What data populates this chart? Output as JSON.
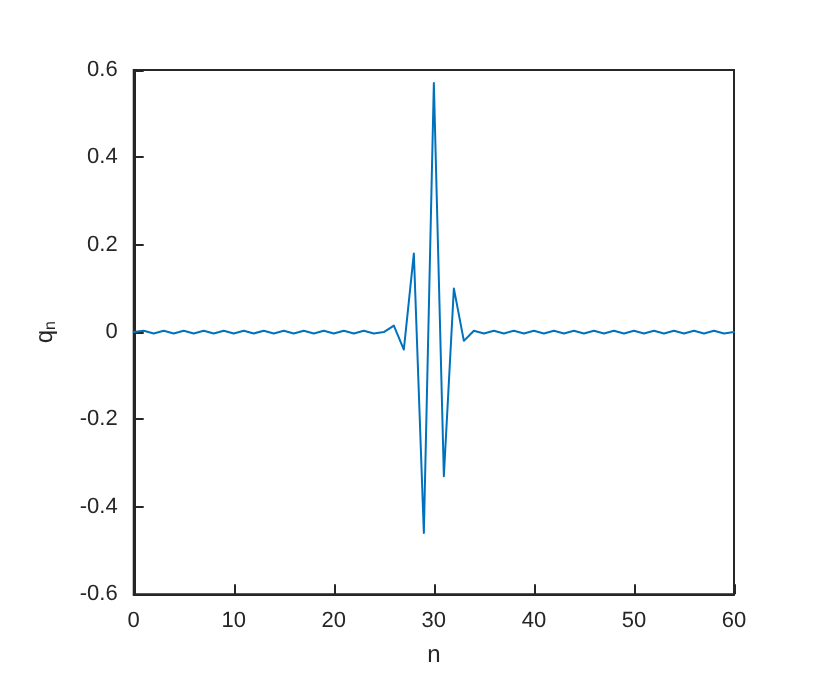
{
  "chart_data": {
    "type": "line",
    "xlabel": "n",
    "ylabel": "q$_{n}$",
    "x": [
      0,
      1,
      2,
      3,
      4,
      5,
      6,
      7,
      8,
      9,
      10,
      11,
      12,
      13,
      14,
      15,
      16,
      17,
      18,
      19,
      20,
      21,
      22,
      23,
      24,
      25,
      26,
      27,
      28,
      29,
      30,
      31,
      32,
      33,
      34,
      35,
      36,
      37,
      38,
      39,
      40,
      41,
      42,
      43,
      44,
      45,
      46,
      47,
      48,
      49,
      50,
      51,
      52,
      53,
      54,
      55,
      56,
      57,
      58,
      59,
      60
    ],
    "series": [
      {
        "color": "#0072bd",
        "values": [
          0,
          0.003,
          -0.003,
          0.003,
          -0.003,
          0.003,
          -0.003,
          0.003,
          -0.003,
          0.003,
          -0.003,
          0.003,
          -0.003,
          0.003,
          -0.003,
          0.003,
          -0.003,
          0.003,
          -0.003,
          0.003,
          -0.003,
          0.003,
          -0.003,
          0.003,
          -0.003,
          0,
          0.015,
          -0.04,
          0.18,
          -0.46,
          0.57,
          -0.33,
          0.1,
          -0.02,
          0.003,
          -0.003,
          0.003,
          -0.003,
          0.003,
          -0.003,
          0.003,
          -0.003,
          0.003,
          -0.003,
          0.003,
          -0.003,
          0.003,
          -0.003,
          0.003,
          -0.003,
          0.003,
          -0.003,
          0.003,
          -0.003,
          0.003,
          -0.003,
          0.003,
          -0.003,
          0.003,
          -0.003,
          0
        ]
      }
    ],
    "xlim": [
      0,
      60
    ],
    "xticks": [
      0,
      10,
      20,
      30,
      40,
      50,
      60
    ],
    "ylim": [
      -0.6,
      0.6
    ],
    "yticks": [
      -0.6,
      -0.4,
      -0.2,
      0,
      0.2,
      0.4,
      0.6
    ],
    "grid": false,
    "marker": "none",
    "line_style": "solid"
  }
}
